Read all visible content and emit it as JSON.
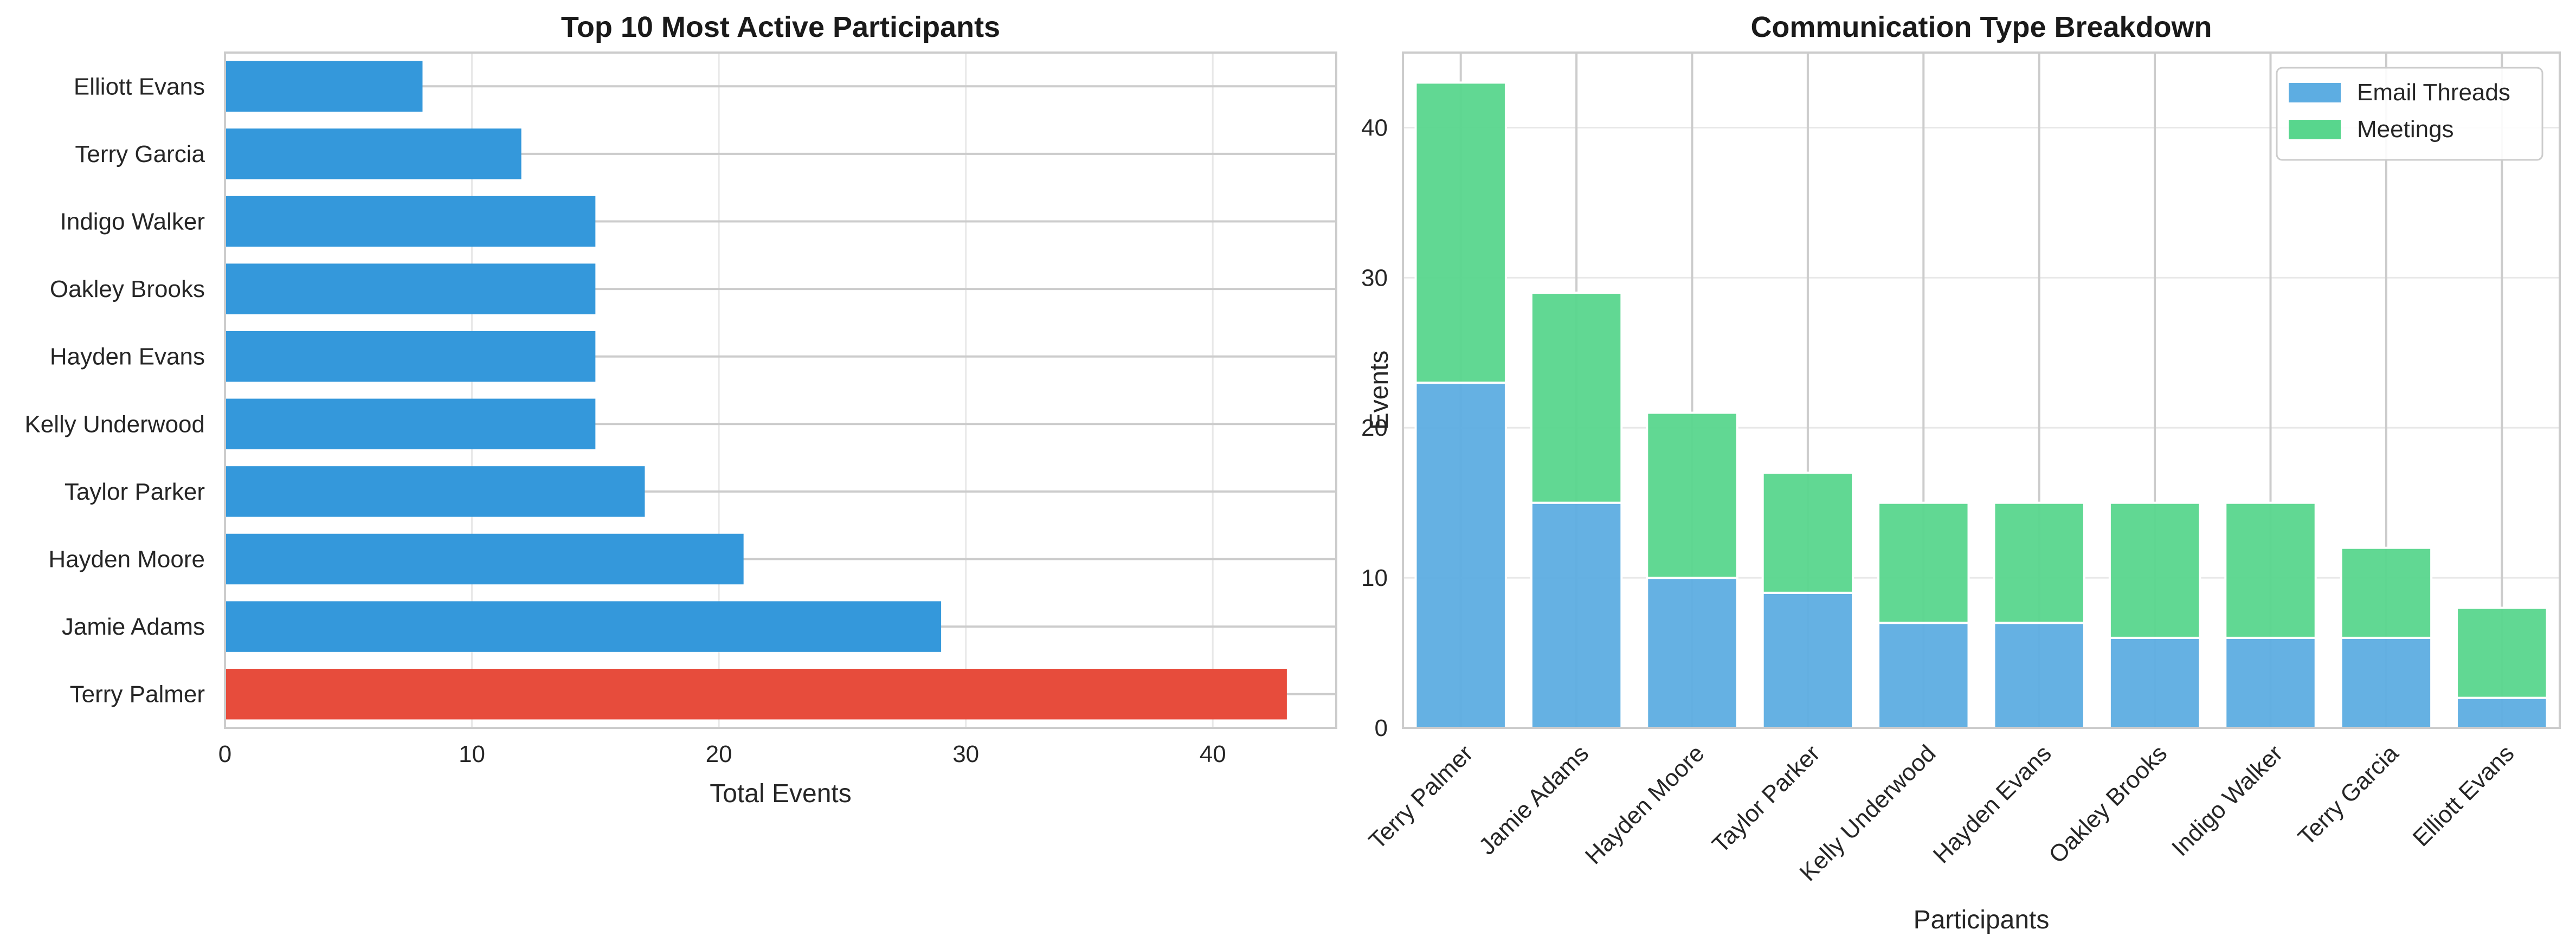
{
  "chart_data": [
    {
      "type": "bar",
      "orientation": "horizontal",
      "title": "Top 10 Most Active Participants",
      "xlabel": "Total Events",
      "ylabel": "",
      "xlim": [
        0,
        45
      ],
      "xticks": [
        0,
        10,
        20,
        30,
        40
      ],
      "grid": true,
      "categories": [
        "Terry Palmer",
        "Jamie Adams",
        "Hayden Moore",
        "Taylor Parker",
        "Kelly Underwood",
        "Hayden Evans",
        "Oakley Brooks",
        "Indigo Walker",
        "Terry Garcia",
        "Elliott Evans"
      ],
      "values": [
        43,
        29,
        21,
        17,
        15,
        15,
        15,
        15,
        12,
        8
      ],
      "colors": {
        "default": "#3498db",
        "highlight": "#e74c3c"
      }
    },
    {
      "type": "bar",
      "stacked": true,
      "title": "Communication Type Breakdown",
      "xlabel": "Participants",
      "ylabel": "Events",
      "ylim": [
        0,
        45
      ],
      "yticks": [
        0,
        10,
        20,
        30,
        40
      ],
      "grid": true,
      "legend": "top-right",
      "categories": [
        "Terry Palmer",
        "Jamie Adams",
        "Hayden Moore",
        "Taylor Parker",
        "Kelly Underwood",
        "Hayden Evans",
        "Oakley Brooks",
        "Indigo Walker",
        "Terry Garcia",
        "Elliott Evans"
      ],
      "series": [
        {
          "name": "Email Threads",
          "color": "#5dade2",
          "values": [
            23,
            15,
            10,
            9,
            7,
            7,
            6,
            6,
            6,
            2
          ]
        },
        {
          "name": "Meetings",
          "color": "#58d68d",
          "values": [
            20,
            14,
            11,
            8,
            8,
            8,
            9,
            9,
            6,
            6
          ]
        }
      ]
    }
  ]
}
